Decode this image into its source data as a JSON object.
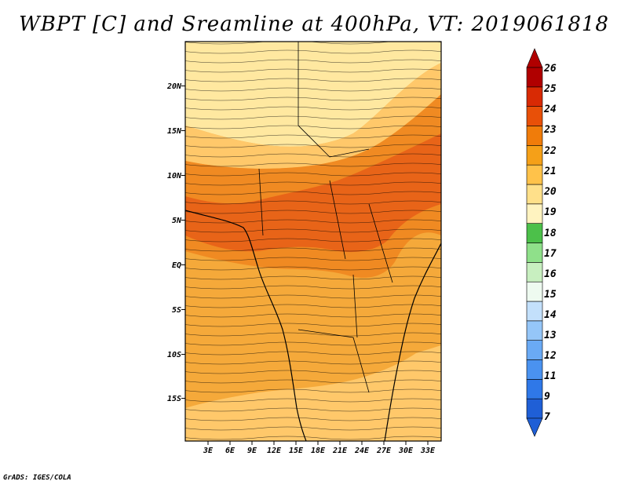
{
  "title": "WBPT [C] and Sreamline at 400hPa, VT: 2019061818",
  "credit": "GrADS: IGES/COLA",
  "map": {
    "lat_labels": [
      "20N",
      "15N",
      "10N",
      "5N",
      "EQ",
      "5S",
      "10S",
      "15S"
    ],
    "lon_labels": [
      "3E",
      "6E",
      "9E",
      "12E",
      "15E",
      "18E",
      "21E",
      "24E",
      "27E",
      "30E",
      "33E"
    ],
    "field_colors": {
      "19": "#ffe8a0",
      "20": "#ffc86a",
      "21": "#f5a93a",
      "22": "#f08a22",
      "23": "#e86418"
    }
  },
  "colorbar": {
    "labels": [
      "7",
      "9",
      "11",
      "12",
      "13",
      "14",
      "15",
      "16",
      "17",
      "18",
      "19",
      "20",
      "21",
      "22",
      "23",
      "24",
      "25",
      "26"
    ],
    "colors": [
      "#1f5fd6",
      "#2f78e8",
      "#4a92f0",
      "#6aaaf5",
      "#95c6f8",
      "#c3e0fb",
      "#eefaf0",
      "#c8efc0",
      "#8fe08a",
      "#4cc04a",
      "#fff3c0",
      "#ffe08a",
      "#ffc24a",
      "#f5a018",
      "#f07c0a",
      "#e85008",
      "#d82a04",
      "#b00000"
    ]
  }
}
